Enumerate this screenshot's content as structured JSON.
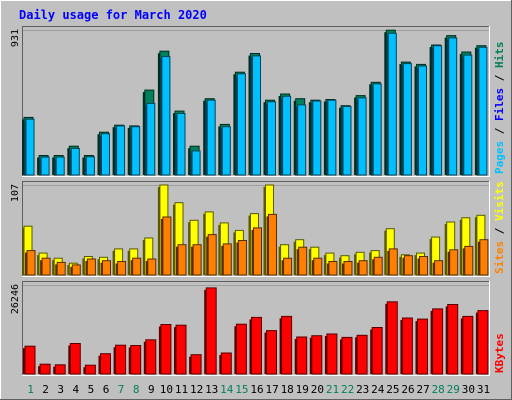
{
  "chart_data": {
    "title": "Daily usage for March 2020",
    "days": [
      "1",
      "2",
      "3",
      "4",
      "5",
      "6",
      "7",
      "8",
      "9",
      "10",
      "11",
      "12",
      "13",
      "14",
      "15",
      "16",
      "17",
      "18",
      "19",
      "20",
      "21",
      "22",
      "23",
      "24",
      "25",
      "26",
      "27",
      "28",
      "29",
      "30",
      "31"
    ],
    "weekend_days": [
      "1",
      "7",
      "8",
      "14",
      "15",
      "21",
      "22",
      "28",
      "29"
    ],
    "colors": {
      "hits": "#00805c",
      "files": "#00c0ff",
      "pages": "#00e0ff",
      "visits": "#ffff00",
      "sites": "#ff8000",
      "kbytes": "#ff0000",
      "title": "#0000ff",
      "weekend": "#00805c",
      "background": "#c0c0c0"
    },
    "panels": [
      {
        "type": "bar",
        "max_label": "931",
        "ymax": 931,
        "right_labels": [
          {
            "text": "Pages",
            "color": "#00c0ff"
          },
          {
            "text": " / ",
            "color": "#000000"
          },
          {
            "text": "Files",
            "color": "#0000ff"
          },
          {
            "text": " / ",
            "color": "#000000"
          },
          {
            "text": "Hits",
            "color": "#00805c"
          }
        ],
        "series": [
          {
            "name": "Hits",
            "values": [
              370,
              125,
              125,
              185,
              125,
              275,
              320,
              315,
              545,
              795,
              410,
              185,
              490,
              325,
              660,
              780,
              480,
              520,
              490,
              480,
              485,
              445,
              510,
              595,
              930,
              725,
              710,
              835,
              895,
              790,
              830
            ]
          },
          {
            "name": "Files",
            "values": [
              358,
              115,
              115,
              170,
              117,
              265,
              315,
              310,
              460,
              760,
              395,
              155,
              480,
              310,
              650,
              765,
              470,
              505,
              450,
              475,
              480,
              440,
              495,
              585,
              910,
              715,
              700,
              830,
              880,
              770,
              820
            ]
          }
        ]
      },
      {
        "type": "bar",
        "max_label": "107",
        "ymax": 107,
        "right_labels": [
          {
            "text": "Sites",
            "color": "#ff8000"
          },
          {
            "text": " / ",
            "color": "#000000"
          },
          {
            "text": "Visits",
            "color": "#ffff00"
          }
        ],
        "series": [
          {
            "name": "Visits",
            "values": [
              58,
              26,
              20,
              14,
              22,
              21,
              31,
              31,
              44,
              107,
              86,
              65,
              75,
              62,
              53,
              73,
              107,
              36,
              42,
              33,
              26,
              23,
              27,
              29,
              55,
              24,
              26,
              45,
              63,
              68,
              71
            ]
          },
          {
            "name": "Sites",
            "values": [
              29,
              20,
              15,
              12,
              19,
              17,
              16,
              20,
              19,
              69,
              36,
              36,
              48,
              37,
              41,
              56,
              72,
              20,
              33,
              20,
              16,
              16,
              17,
              21,
              31,
              23,
              22,
              17,
              30,
              34,
              42
            ]
          }
        ]
      },
      {
        "type": "bar",
        "max_label": "26246",
        "ymax": 26246,
        "right_labels": [
          {
            "text": "KBytes",
            "color": "#ff0000"
          }
        ],
        "series": [
          {
            "name": "KBytes",
            "values": [
              8200,
              2900,
              2700,
              9000,
              2600,
              6000,
              8500,
              8400,
              10100,
              14600,
              14400,
              5700,
              25400,
              6200,
              14700,
              16700,
              12800,
              17000,
              10900,
              11300,
              11800,
              10800,
              11400,
              13700,
              21300,
              16500,
              16200,
              19200,
              20500,
              17000,
              18700
            ]
          }
        ]
      }
    ]
  }
}
